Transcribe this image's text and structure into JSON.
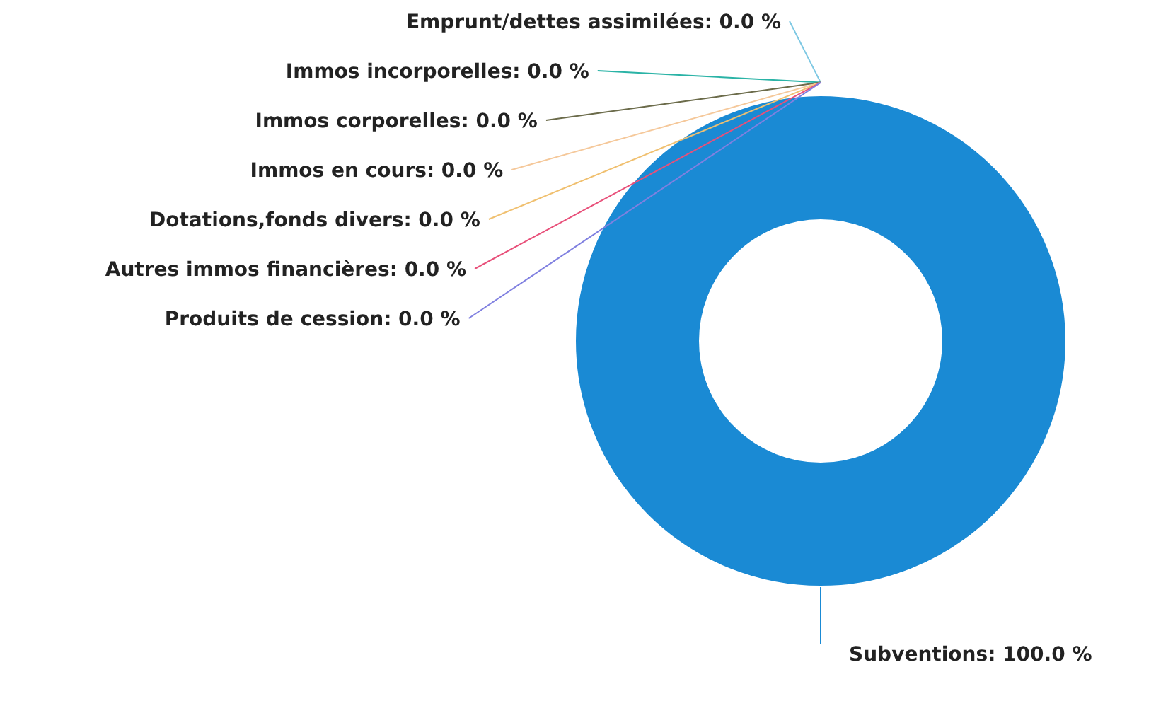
{
  "chart_data": {
    "type": "donut",
    "categories": [
      "Emprunt/dettes assimilées",
      "Immos incorporelles",
      "Immos corporelles",
      "Immos en cours",
      "Dotations,fonds divers",
      "Autres immos financières",
      "Produits de cession",
      "Subventions"
    ],
    "values": [
      0,
      0,
      0,
      0,
      0,
      0,
      0,
      100
    ],
    "value_labels": [
      ": 0.0 %",
      ": 0.0 %",
      ": 0.0 %",
      ": 0.0 %",
      ": 0.0 %",
      ": 0.0 %",
      ": 0.0 %",
      ": 100.0 %"
    ],
    "colors": [
      "#7ec8e3",
      "#2ab3a6",
      "#6b6b4a",
      "#f5c89a",
      "#f0c070",
      "#e8507a",
      "#8080e0",
      "#1a8ad4"
    ]
  }
}
